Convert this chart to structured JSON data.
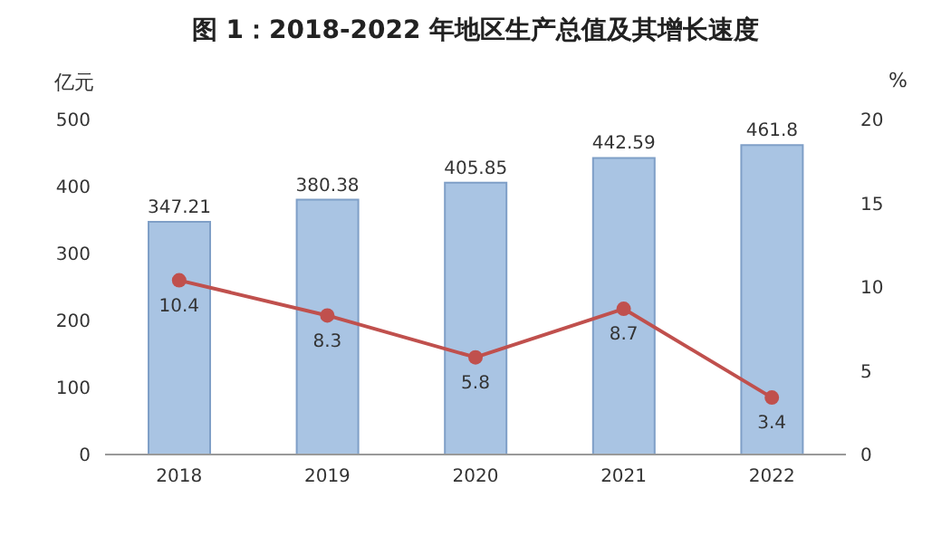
{
  "chart_data": {
    "type": "bar",
    "title": "图 1：2018-2022 年地区生产总值及其增长速度",
    "ylabel": "亿元",
    "y2label": "%",
    "categories": [
      "2018",
      "2019",
      "2020",
      "2021",
      "2022"
    ],
    "series": [
      {
        "color": "#a9c4e3",
        "values": [
          347.21,
          380.38,
          405.85,
          442.59,
          461.8
        ]
      },
      {
        "type": "line",
        "axis": "y2",
        "color": "#c0504d",
        "marker": "circle",
        "values": [
          10.4,
          8.3,
          5.8,
          8.7,
          3.4
        ]
      }
    ],
    "ylim": [
      0,
      500
    ],
    "yticks": [
      0,
      100,
      200,
      300,
      400,
      500
    ],
    "y2lim": [
      0,
      20
    ],
    "y2ticks": [
      0,
      5,
      10,
      15,
      20
    ],
    "data_labels": true,
    "grid": false,
    "legend": false
  }
}
